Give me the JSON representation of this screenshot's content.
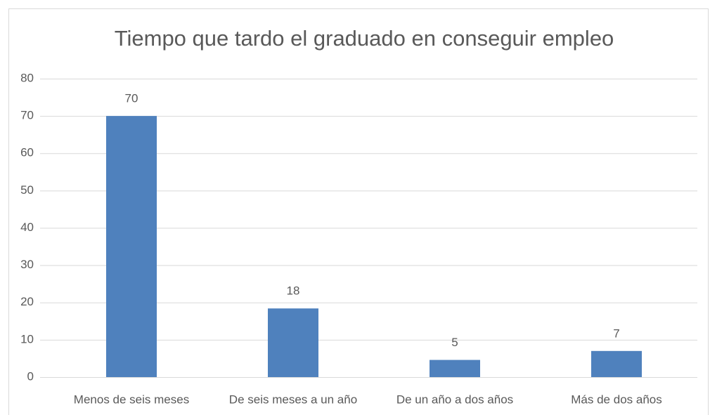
{
  "chart_data": {
    "type": "bar",
    "title": "Tiempo que tardo el graduado en conseguir empleo",
    "categories": [
      "Menos de seis meses",
      "De seis meses a un año",
      "De un año a dos años",
      "Más de dos años"
    ],
    "values": [
      70,
      18.4,
      4.6,
      7
    ],
    "value_labels": [
      "70",
      "18",
      "5",
      "7"
    ],
    "color": "#4f81bd",
    "ylim": [
      0,
      80
    ],
    "yticks": [
      0,
      10,
      20,
      30,
      40,
      50,
      60,
      70,
      80
    ],
    "grid": true
  }
}
